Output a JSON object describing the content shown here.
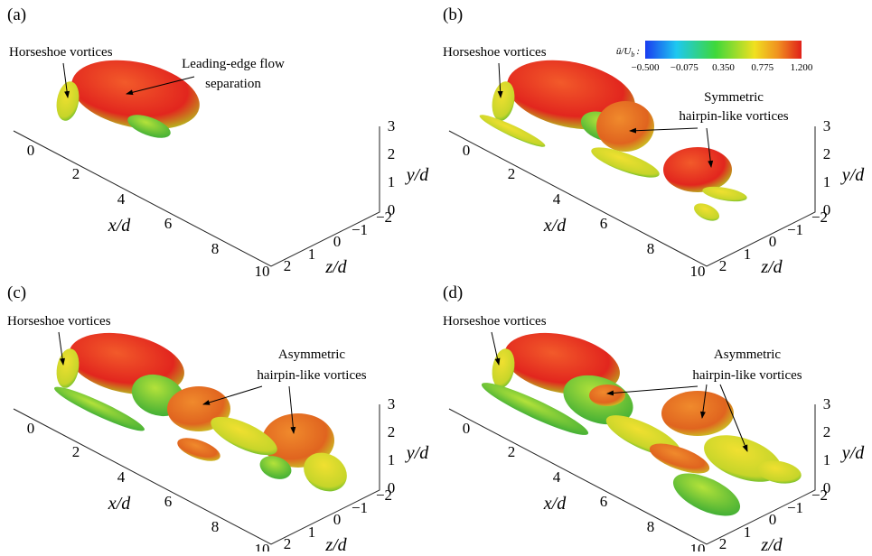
{
  "panels": [
    {
      "label": "(a)",
      "annotations": [
        {
          "lines": [
            "Horseshoe vortices"
          ]
        },
        {
          "lines": [
            "Leading-edge flow",
            "separation"
          ]
        }
      ],
      "x_axis": {
        "label": "x/d",
        "ticks": [
          "0",
          "2",
          "4",
          "6",
          "8",
          "10"
        ]
      },
      "z_axis": {
        "label": "z/d",
        "ticks": [
          "2",
          "1",
          "0",
          "−1",
          "−2"
        ]
      },
      "y_axis": {
        "label": "y/d",
        "ticks": [
          "0",
          "1",
          "2",
          "3"
        ]
      }
    },
    {
      "label": "(b)",
      "annotations": [
        {
          "lines": [
            "Horseshoe vortices"
          ]
        },
        {
          "lines": [
            "Symmetric",
            "hairpin-like vortices"
          ]
        }
      ],
      "x_axis": {
        "label": "x/d",
        "ticks": [
          "0",
          "2",
          "4",
          "6",
          "8",
          "10"
        ]
      },
      "z_axis": {
        "label": "z/d",
        "ticks": [
          "2",
          "1",
          "0",
          "−1",
          "−2"
        ]
      },
      "y_axis": {
        "label": "y/d",
        "ticks": [
          "0",
          "1",
          "2",
          "3"
        ]
      },
      "colorbar": {
        "label": "ū/U",
        "label_subscript": "b",
        "label_suffix": ":",
        "ticks": [
          "−0.500",
          "−0.075",
          "0.350",
          "0.775",
          "1.200"
        ]
      }
    },
    {
      "label": "(c)",
      "annotations": [
        {
          "lines": [
            "Horseshoe vortices"
          ]
        },
        {
          "lines": [
            "Asymmetric",
            "hairpin-like vortices"
          ]
        }
      ],
      "x_axis": {
        "label": "x/d",
        "ticks": [
          "0",
          "2",
          "4",
          "6",
          "8",
          "10"
        ]
      },
      "z_axis": {
        "label": "z/d",
        "ticks": [
          "2",
          "1",
          "0",
          "−1",
          "−2"
        ]
      },
      "y_axis": {
        "label": "y/d",
        "ticks": [
          "0",
          "1",
          "2",
          "3"
        ]
      }
    },
    {
      "label": "(d)",
      "annotations": [
        {
          "lines": [
            "Horseshoe vortices"
          ]
        },
        {
          "lines": [
            "Asymmetric",
            "hairpin-like vortices"
          ]
        }
      ],
      "x_axis": {
        "label": "x/d",
        "ticks": [
          "0",
          "2",
          "4",
          "6",
          "8",
          "10"
        ]
      },
      "z_axis": {
        "label": "z/d",
        "ticks": [
          "2",
          "1",
          "0",
          "−1",
          "−2"
        ]
      },
      "y_axis": {
        "label": "y/d",
        "ticks": [
          "0",
          "1",
          "2",
          "3"
        ]
      }
    }
  ]
}
